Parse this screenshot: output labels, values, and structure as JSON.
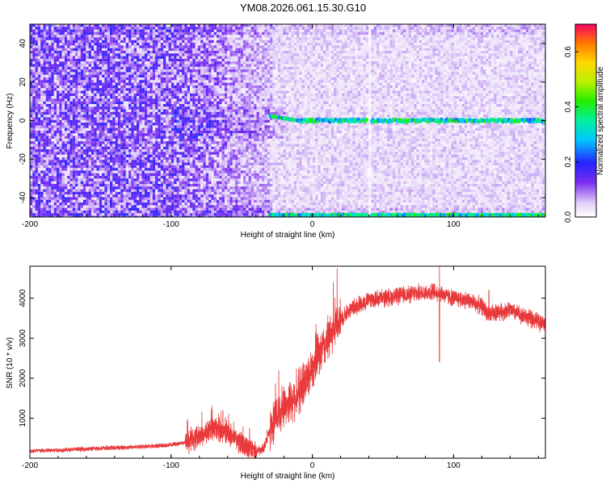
{
  "title": "YM08.2026.061.15.30.G10",
  "chart_data": [
    {
      "type": "heatmap",
      "xlabel": "Height of straight line (km)",
      "ylabel": "Frequency (Hz)",
      "xlim": [
        -200,
        165
      ],
      "ylim": [
        -50,
        50
      ],
      "xticks": [
        -200,
        -100,
        0,
        100
      ],
      "yticks": [
        -40,
        -20,
        0,
        20,
        40
      ],
      "colorbar": {
        "label": "Normalized spectral amplitude",
        "range": [
          0,
          0.7
        ],
        "ticks": [
          "0.0",
          "0.2",
          "0.4",
          "0.6"
        ],
        "tick_values": [
          0,
          0.2,
          0.4,
          0.6
        ]
      },
      "features": [
        {
          "name": "carrier line",
          "frequency": 0,
          "x_range": [
            -30,
            165
          ],
          "amplitude": 0.3
        },
        {
          "name": "lower edge line",
          "frequency": -49,
          "x_range": [
            -30,
            165
          ],
          "amplitude": 0.3
        },
        {
          "name": "gap",
          "x": 40
        }
      ]
    },
    {
      "type": "line",
      "xlabel": "Height of straight line (km)",
      "ylabel": "SNR (10 * v/v)",
      "xlim": [
        -200,
        165
      ],
      "ylim": [
        0,
        4800
      ],
      "xticks": [
        -200,
        -100,
        0,
        100
      ],
      "yticks": [
        1000,
        2000,
        3000,
        4000
      ],
      "color": "#e8393b",
      "series": [
        {
          "x": [
            -200,
            -180,
            -160,
            -140,
            -120,
            -100,
            -90,
            -80,
            -70,
            -60,
            -50,
            -40,
            -35,
            -30,
            -25,
            -20,
            -10,
            0,
            10,
            20,
            30,
            40,
            60,
            80,
            90,
            95,
            100,
            110,
            120,
            125,
            130,
            140,
            150,
            165
          ],
          "values": [
            180,
            200,
            230,
            260,
            290,
            330,
            400,
            550,
            750,
            650,
            350,
            180,
            200,
            700,
            1100,
            1300,
            1600,
            2300,
            2900,
            3500,
            3800,
            3950,
            4050,
            4150,
            4150,
            4050,
            4000,
            3950,
            3800,
            3600,
            3650,
            3700,
            3550,
            3350
          ]
        }
      ],
      "spikes": [
        {
          "x": 90,
          "low": 2400,
          "high": 4900
        },
        {
          "x": 125,
          "low": 3500,
          "high": 4200
        }
      ]
    }
  ]
}
